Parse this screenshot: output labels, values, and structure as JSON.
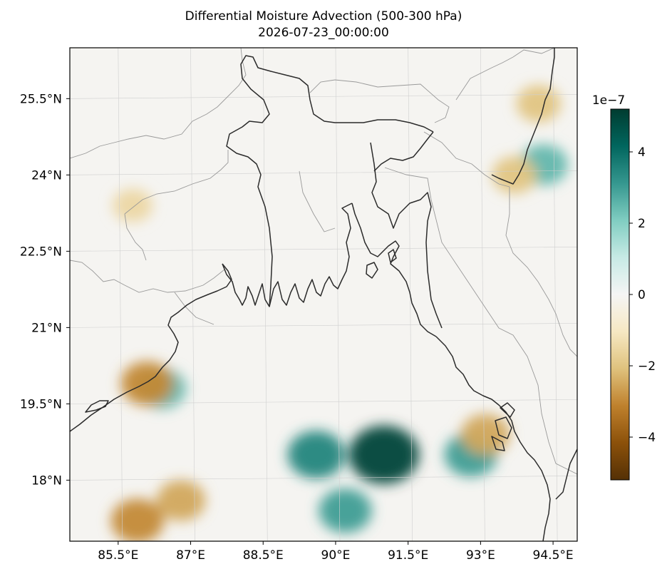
{
  "title": "Differential Moisture Advection (500-300 hPa)",
  "subtitle": "2026-07-23_00:00:00",
  "colorbar": {
    "exponent_label": "1e−7",
    "ticks": [
      "4",
      "2",
      "0",
      "−2",
      "−4"
    ],
    "tick_values": [
      4,
      2,
      0,
      -2,
      -4
    ],
    "range": [
      -5.2,
      5.2
    ],
    "colormap": [
      "#543005",
      "#8c510a",
      "#bf812d",
      "#dfc27d",
      "#f6e8c3",
      "#f5f5f5",
      "#c7eae5",
      "#80cdc1",
      "#35978f",
      "#01665e",
      "#003c30"
    ]
  },
  "map": {
    "lon_range": [
      84.5,
      95.0
    ],
    "lat_range": [
      16.8,
      26.5
    ],
    "lon_ticks": [
      "85.5°E",
      "87°E",
      "88.5°E",
      "90°E",
      "91.5°E",
      "93°E",
      "94.5°E"
    ],
    "lon_tick_values": [
      85.5,
      87,
      88.5,
      90,
      91.5,
      93,
      94.5
    ],
    "lat_ticks": [
      "25.5°N",
      "24°N",
      "22.5°N",
      "21°N",
      "19.5°N",
      "18°N"
    ],
    "lat_tick_values": [
      25.5,
      24,
      22.5,
      21,
      19.5,
      18
    ],
    "coastline_color": "#2b2b2b",
    "border_color": "#999999",
    "gridlines": true,
    "field_features": [
      {
        "kind": "positive-max",
        "lon": 91.0,
        "lat": 18.5,
        "value": 5.0
      },
      {
        "kind": "positive",
        "lon": 89.6,
        "lat": 18.5,
        "value": 3.5
      },
      {
        "kind": "positive",
        "lon": 92.8,
        "lat": 18.5,
        "value": 3.0
      },
      {
        "kind": "positive",
        "lon": 90.2,
        "lat": 17.4,
        "value": 3.0
      },
      {
        "kind": "positive",
        "lon": 94.3,
        "lat": 24.2,
        "value": 2.5
      },
      {
        "kind": "positive",
        "lon": 86.4,
        "lat": 19.8,
        "value": 2.5
      },
      {
        "kind": "negative",
        "lon": 86.1,
        "lat": 19.9,
        "value": -3.0
      },
      {
        "kind": "negative",
        "lon": 85.9,
        "lat": 17.2,
        "value": -3.0
      },
      {
        "kind": "negative",
        "lon": 86.8,
        "lat": 17.6,
        "value": -2.5
      },
      {
        "kind": "negative",
        "lon": 93.1,
        "lat": 18.9,
        "value": -2.5
      },
      {
        "kind": "negative",
        "lon": 93.7,
        "lat": 24.0,
        "value": -2.0
      },
      {
        "kind": "negative",
        "lon": 94.2,
        "lat": 25.4,
        "value": -2.0
      },
      {
        "kind": "negative",
        "lon": 85.8,
        "lat": 23.4,
        "value": -1.5
      }
    ]
  }
}
